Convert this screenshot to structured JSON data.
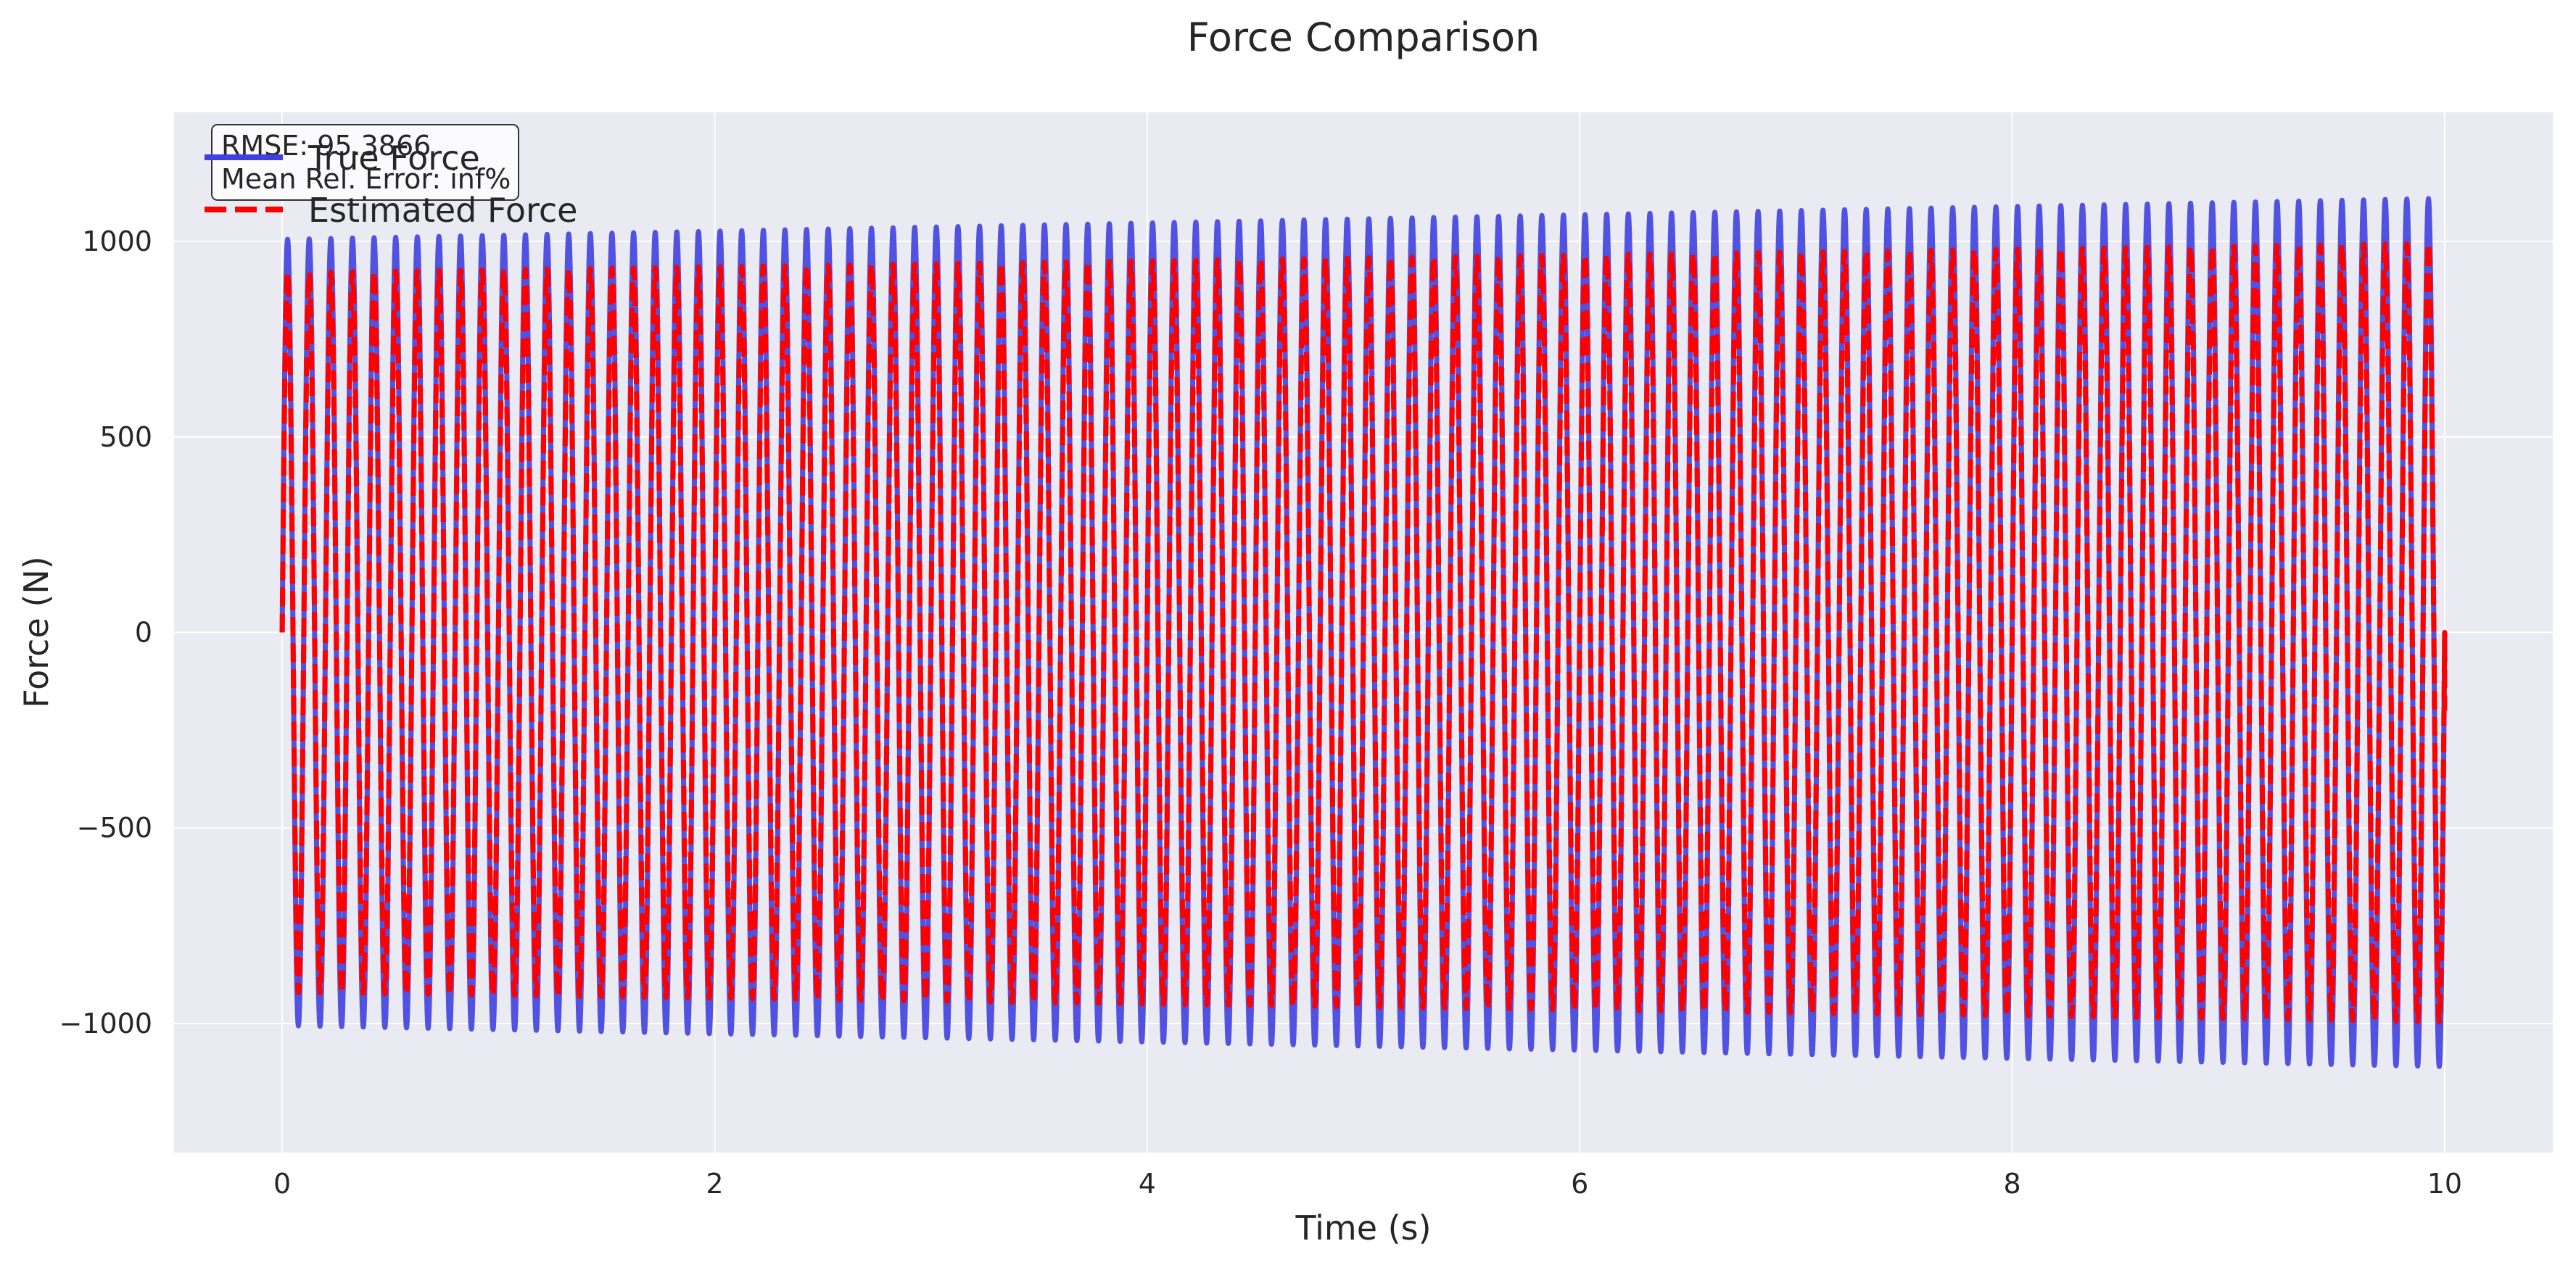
{
  "chart_data": {
    "type": "line",
    "title": "Force Comparison",
    "xlabel": "Time (s)",
    "ylabel": "Force (N)",
    "xlim": [
      -0.5,
      10.5
    ],
    "ylim": [
      -1330,
      1330
    ],
    "xticks": [
      0,
      2,
      4,
      6,
      8,
      10
    ],
    "xtick_labels": [
      "0",
      "2",
      "4",
      "6",
      "8",
      "10"
    ],
    "yticks": [
      -1000,
      -500,
      0,
      500,
      1000
    ],
    "ytick_labels": [
      "−1000",
      "−500",
      "0",
      "500",
      "1000"
    ],
    "grid": true,
    "legend_position": "top-left",
    "background": "#eaeaf2",
    "series": [
      {
        "name": "True Force",
        "color": "#4040e0",
        "style": "solid",
        "frequency_hz": 10,
        "t_start": 0,
        "t_end": 10,
        "amplitude_start": 1005,
        "amplitude_end": 1110,
        "y_start": 0
      },
      {
        "name": "Estimated Force",
        "color": "#ff0000",
        "style": "dashed",
        "frequency_hz": 10,
        "t_start": 0,
        "t_end": 10,
        "amplitude_start": 920,
        "amplitude_end": 995,
        "y_end": -200
      }
    ],
    "annotation": {
      "lines": [
        "RMSE: 95.3866",
        "Mean Rel. Error: inf%"
      ]
    }
  }
}
